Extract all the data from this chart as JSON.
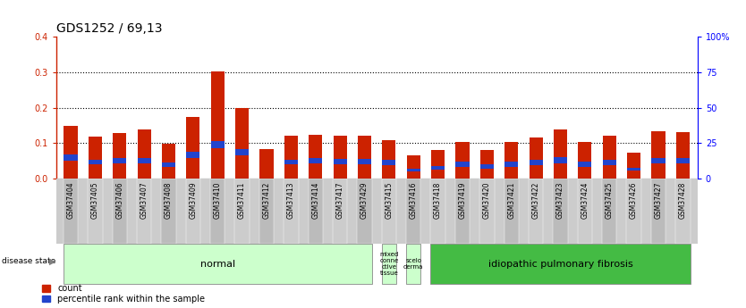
{
  "title": "GDS1252 / 69,13",
  "samples": [
    "GSM37404",
    "GSM37405",
    "GSM37406",
    "GSM37407",
    "GSM37408",
    "GSM37409",
    "GSM37410",
    "GSM37411",
    "GSM37412",
    "GSM37413",
    "GSM37414",
    "GSM37417",
    "GSM37429",
    "GSM37415",
    "GSM37416",
    "GSM37418",
    "GSM37419",
    "GSM37420",
    "GSM37421",
    "GSM37422",
    "GSM37423",
    "GSM37424",
    "GSM37425",
    "GSM37426",
    "GSM37427",
    "GSM37428"
  ],
  "red_values": [
    0.148,
    0.118,
    0.13,
    0.14,
    0.098,
    0.175,
    0.302,
    0.2,
    0.083,
    0.122,
    0.125,
    0.122,
    0.122,
    0.108,
    0.065,
    0.08,
    0.103,
    0.08,
    0.103,
    0.115,
    0.138,
    0.104,
    0.12,
    0.073,
    0.133,
    0.132
  ],
  "blue_values": [
    0.018,
    0.014,
    0.014,
    0.014,
    0.012,
    0.018,
    0.02,
    0.018,
    0.0,
    0.014,
    0.015,
    0.014,
    0.014,
    0.014,
    0.008,
    0.01,
    0.015,
    0.014,
    0.014,
    0.016,
    0.016,
    0.015,
    0.016,
    0.009,
    0.017,
    0.015
  ],
  "blue_bottoms": [
    0.05,
    0.04,
    0.044,
    0.044,
    0.034,
    0.057,
    0.085,
    0.066,
    0.0,
    0.04,
    0.042,
    0.041,
    0.041,
    0.038,
    0.02,
    0.025,
    0.033,
    0.027,
    0.034,
    0.037,
    0.044,
    0.033,
    0.038,
    0.022,
    0.042,
    0.042
  ],
  "disease_groups": [
    {
      "label": "normal",
      "start": 0,
      "end": 13,
      "color": "#ccffcc",
      "text_fontsize": 8
    },
    {
      "label": "mixed\nconne\nctive\ntissue",
      "start": 13,
      "end": 14,
      "color": "#ccffcc",
      "text_fontsize": 5
    },
    {
      "label": "scelo\nderma",
      "start": 14,
      "end": 15,
      "color": "#ccffcc",
      "text_fontsize": 5
    },
    {
      "label": "idiopathic pulmonary fibrosis",
      "start": 15,
      "end": 26,
      "color": "#44bb44",
      "text_fontsize": 8
    }
  ],
  "ylim_left": [
    0,
    0.4
  ],
  "ylim_right": [
    0,
    100
  ],
  "yticks_left": [
    0,
    0.1,
    0.2,
    0.3,
    0.4
  ],
  "yticks_right": [
    0,
    25,
    50,
    75,
    100
  ],
  "bar_color_red": "#cc2200",
  "bar_color_blue": "#2244cc",
  "background_color": "#ffffff",
  "title_fontsize": 10,
  "tick_fontsize": 6,
  "bar_width": 0.55
}
